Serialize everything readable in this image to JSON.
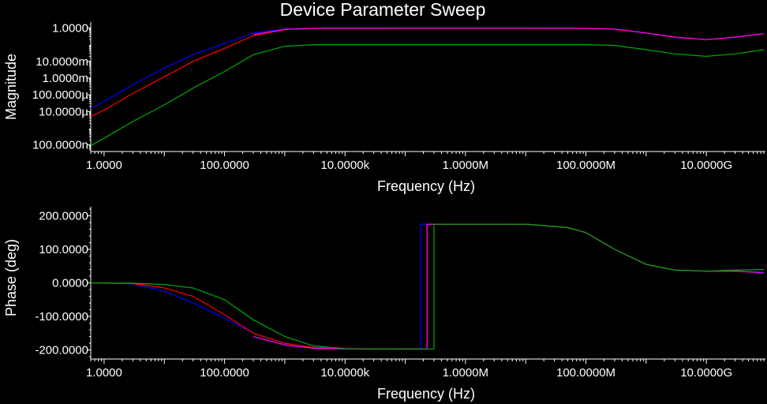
{
  "chart_data": [
    {
      "type": "line",
      "title": "Device Parameter Sweep",
      "xlabel": "Frequency (Hz)",
      "ylabel": "Magnitude",
      "x_scale": "log",
      "y_scale": "log",
      "xlim": [
        0.6,
        90000000000
      ],
      "ylim": [
        5e-08,
        1.8
      ],
      "grid": false,
      "x_ticks": [
        {
          "value": 1,
          "label": "1.0000"
        },
        {
          "value": 100,
          "label": "100.0000"
        },
        {
          "value": 10000,
          "label": "10.0000k"
        },
        {
          "value": 1000000,
          "label": "1.0000M"
        },
        {
          "value": 100000000,
          "label": "100.0000M"
        },
        {
          "value": 10000000000,
          "label": "10.0000G"
        }
      ],
      "y_ticks": [
        {
          "value": 1,
          "label": "1.0000"
        },
        {
          "value": 0.01,
          "label": "10.0000m"
        },
        {
          "value": 0.001,
          "label": "1.0000m"
        },
        {
          "value": 0.0001,
          "label": "100.0000µ"
        },
        {
          "value": 1e-05,
          "label": "10.0000µ"
        },
        {
          "value": 1e-07,
          "label": "100.0000n"
        }
      ],
      "series": [
        {
          "color": "#0000ff",
          "x": [
            0.6,
            1,
            3,
            10,
            30,
            100,
            300,
            1000,
            3000,
            100000,
            10000000,
            100000000,
            300000000,
            1000000000,
            3000000000,
            10000000000,
            30000000000,
            90000000000
          ],
          "y": [
            1.5e-05,
            4e-05,
            0.0004,
            0.004,
            0.025,
            0.12,
            0.5,
            0.85,
            0.95,
            0.96,
            0.96,
            0.95,
            0.85,
            0.5,
            0.28,
            0.2,
            0.28,
            0.45
          ]
        },
        {
          "color": "#ff0000",
          "x": [
            0.6,
            1,
            3,
            10,
            30,
            100,
            300,
            1000,
            3000,
            100000,
            10000000,
            100000000,
            300000000,
            1000000000,
            3000000000,
            10000000000,
            30000000000,
            90000000000
          ],
          "y": [
            5e-06,
            1.2e-05,
            0.00012,
            0.0012,
            0.01,
            0.06,
            0.35,
            0.8,
            0.95,
            0.96,
            0.96,
            0.95,
            0.85,
            0.5,
            0.28,
            0.2,
            0.28,
            0.45
          ]
        },
        {
          "color": "#ff00ff",
          "x": [
            300,
            1000,
            3000,
            100000,
            10000000,
            100000000,
            300000000,
            1000000000,
            3000000000,
            10000000000,
            30000000000,
            90000000000
          ],
          "y": [
            0.4,
            0.82,
            0.95,
            0.96,
            0.96,
            0.95,
            0.85,
            0.5,
            0.28,
            0.2,
            0.28,
            0.45
          ]
        },
        {
          "color": "#00aa00",
          "x": [
            0.6,
            1,
            3,
            10,
            30,
            100,
            300,
            1000,
            3000,
            100000,
            10000000,
            100000000,
            300000000,
            1000000000,
            3000000000,
            10000000000,
            30000000000,
            90000000000
          ],
          "y": [
            9e-08,
            2.5e-07,
            2.5e-06,
            2.5e-05,
            0.00025,
            0.0025,
            0.025,
            0.08,
            0.1,
            0.1,
            0.1,
            0.1,
            0.09,
            0.05,
            0.028,
            0.02,
            0.028,
            0.05
          ]
        }
      ]
    },
    {
      "type": "line",
      "xlabel": "Frequency (Hz)",
      "ylabel": "Phase (deg)",
      "x_scale": "log",
      "y_scale": "linear",
      "xlim": [
        0.6,
        90000000000
      ],
      "ylim": [
        -220,
        220
      ],
      "grid": false,
      "x_ticks": [
        {
          "value": 1,
          "label": "1.0000"
        },
        {
          "value": 100,
          "label": "100.0000"
        },
        {
          "value": 10000,
          "label": "10.0000k"
        },
        {
          "value": 1000000,
          "label": "1.0000M"
        },
        {
          "value": 100000000,
          "label": "100.0000M"
        },
        {
          "value": 10000000000,
          "label": "10.0000G"
        }
      ],
      "y_ticks": [
        {
          "value": 200,
          "label": "200.0000"
        },
        {
          "value": 100,
          "label": "100.0000"
        },
        {
          "value": 0,
          "label": "0.0000"
        },
        {
          "value": -100,
          "label": "-100.0000"
        },
        {
          "value": -200,
          "label": "-200.0000"
        }
      ],
      "series": [
        {
          "color": "#0000ff",
          "x": [
            0.6,
            3,
            10,
            30,
            100,
            300,
            1000,
            3000,
            10000,
            100000,
            180000,
            180000,
            10000000,
            50000000,
            100000000,
            300000000,
            1000000000,
            3000000000,
            10000000000,
            30000000000,
            90000000000
          ],
          "y": [
            0,
            -3,
            -25,
            -60,
            -105,
            -150,
            -180,
            -193,
            -197,
            -197,
            -197,
            175,
            175,
            165,
            150,
            100,
            55,
            38,
            35,
            35,
            33
          ]
        },
        {
          "color": "#ff0000",
          "x": [
            0.6,
            3,
            10,
            30,
            100,
            300,
            1000,
            3000,
            10000,
            100000,
            230000,
            230000,
            10000000,
            50000000,
            100000000,
            300000000,
            1000000000,
            3000000000,
            10000000000,
            30000000000,
            90000000000
          ],
          "y": [
            0,
            -2,
            -15,
            -40,
            -95,
            -150,
            -180,
            -193,
            -197,
            -197,
            -197,
            175,
            175,
            165,
            150,
            100,
            55,
            38,
            35,
            35,
            30
          ]
        },
        {
          "color": "#ff00ff",
          "x": [
            300,
            1000,
            3000,
            10000,
            100000,
            230000,
            230000,
            10000000,
            50000000,
            100000000,
            300000000,
            1000000000,
            3000000000,
            10000000000,
            30000000000,
            90000000000
          ],
          "y": [
            -160,
            -185,
            -195,
            -197,
            -197,
            -197,
            175,
            175,
            165,
            150,
            100,
            55,
            38,
            35,
            35,
            30
          ]
        },
        {
          "color": "#00aa00",
          "x": [
            0.6,
            3,
            10,
            30,
            100,
            300,
            1000,
            3000,
            10000,
            100000,
            300000,
            300000,
            10000000,
            50000000,
            100000000,
            300000000,
            1000000000,
            3000000000,
            10000000000,
            30000000000,
            90000000000
          ],
          "y": [
            0,
            -1,
            -5,
            -15,
            -50,
            -110,
            -160,
            -188,
            -196,
            -197,
            -197,
            175,
            175,
            165,
            150,
            100,
            55,
            38,
            35,
            38,
            40
          ]
        }
      ]
    }
  ]
}
